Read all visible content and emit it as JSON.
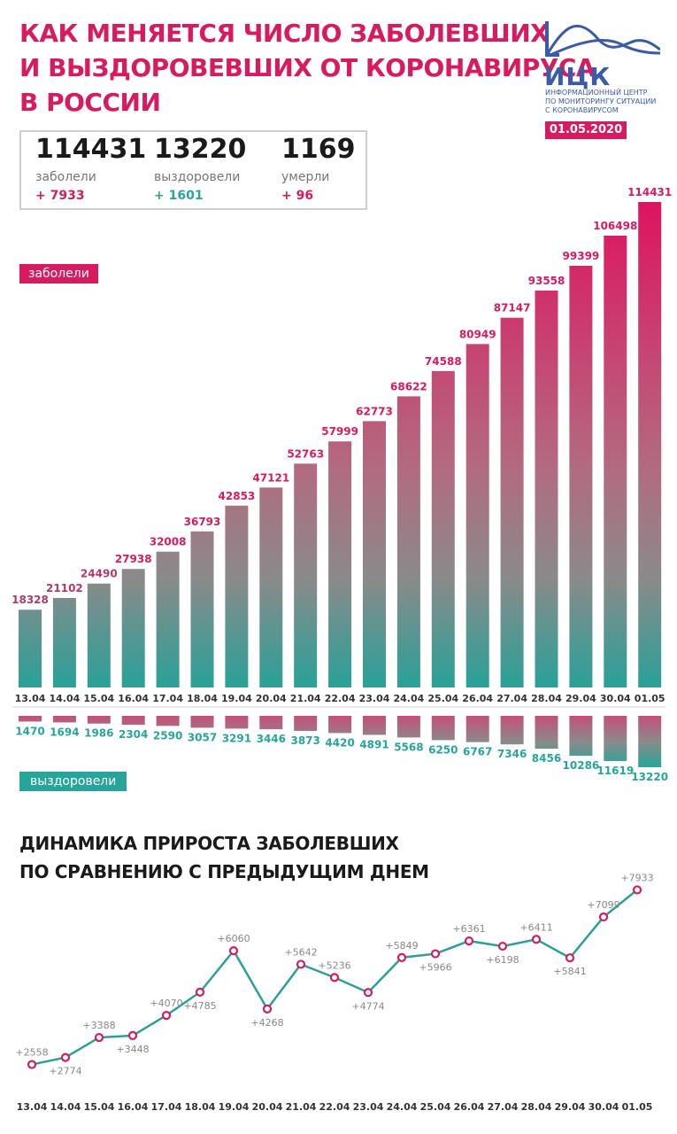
{
  "header": {
    "title_lines": [
      "КАК МЕНЯЕТСЯ ЧИСЛО ЗАБОЛЕВШИХ",
      "И ВЫЗДОРОВЕВШИХ ОТ КОРОНАВИРУСА",
      "В РОССИИ"
    ],
    "date": "01.05.2020"
  },
  "logo": {
    "name": "ИЦК",
    "subtitle_lines": [
      "ИНФОРМАЦИОННЫЙ ЦЕНТР",
      "ПО МОНИТОРИНГУ СИТУАЦИИ",
      "С КОРОНАВИРУСОМ"
    ]
  },
  "summary": {
    "infected": {
      "value": "114431",
      "label": "заболели",
      "increase": "+ 7933"
    },
    "recovered": {
      "value": "13220",
      "label": "выздоровели",
      "increase": "+ 1601"
    },
    "deaths": {
      "value": "1169",
      "label": "умерли",
      "increase": "+ 96"
    }
  },
  "colors": {
    "accent": "#d81b60",
    "teal": "#26a69a",
    "line": "#2aa198",
    "gray_text": "#888888"
  },
  "tags": {
    "infected": "заболели",
    "recovered": "выздоровели"
  },
  "subtitle_lines": [
    "ДИНАМИКА ПРИРОСТА ЗАБОЛЕВШИХ",
    "ПО СРАВНЕНИЮ С ПРЕДЫДУЩИМ ДНЕМ"
  ],
  "chart_data": [
    {
      "type": "bar",
      "categories": [
        "13.04",
        "14.04",
        "15.04",
        "16.04",
        "17.04",
        "18.04",
        "19.04",
        "20.04",
        "21.04",
        "22.04",
        "23.04",
        "24.04",
        "25.04",
        "26.04",
        "27.04",
        "28.04",
        "29.04",
        "30.04",
        "01.05"
      ],
      "series": [
        {
          "name": "заболели",
          "values": [
            18328,
            21102,
            24490,
            27938,
            32008,
            36793,
            42853,
            47121,
            52763,
            57999,
            62773,
            68622,
            74588,
            80949,
            87147,
            93558,
            99399,
            106498,
            114431
          ]
        },
        {
          "name": "выздоровели",
          "values": [
            1470,
            1694,
            1986,
            2304,
            2590,
            3057,
            3291,
            3446,
            3873,
            4420,
            4891,
            5568,
            6250,
            6767,
            7346,
            8456,
            10286,
            11619,
            13220
          ]
        }
      ]
    },
    {
      "type": "line",
      "title": "ДИНАМИКА ПРИРОСТА ЗАБОЛЕВШИХ ПО СРАВНЕНИЮ С ПРЕДЫДУЩИМ ДНЕМ",
      "categories": [
        "13.04",
        "14.04",
        "15.04",
        "16.04",
        "17.04",
        "18.04",
        "19.04",
        "20.04",
        "21.04",
        "22.04",
        "23.04",
        "24.04",
        "25.04",
        "26.04",
        "27.04",
        "28.04",
        "29.04",
        "30.04",
        "01.05"
      ],
      "values": [
        2558,
        2774,
        3388,
        3448,
        4070,
        4785,
        6060,
        4268,
        5642,
        5236,
        4774,
        5849,
        5966,
        6361,
        6198,
        6411,
        5841,
        7099,
        7933
      ],
      "labels": [
        "+2558",
        "+2774",
        "+3388",
        "+3448",
        "+4070",
        "+4785",
        "+6060",
        "+4268",
        "+5642",
        "+5236",
        "+4774",
        "+5849",
        "+5966",
        "+6361",
        "+6198",
        "+6411",
        "+5841",
        "+7099",
        "+7933"
      ],
      "label_positions": [
        "above",
        "below",
        "above",
        "below",
        "above",
        "below",
        "above",
        "below",
        "above",
        "above",
        "below",
        "above",
        "below",
        "above",
        "below",
        "above",
        "below",
        "above",
        "above"
      ]
    }
  ]
}
